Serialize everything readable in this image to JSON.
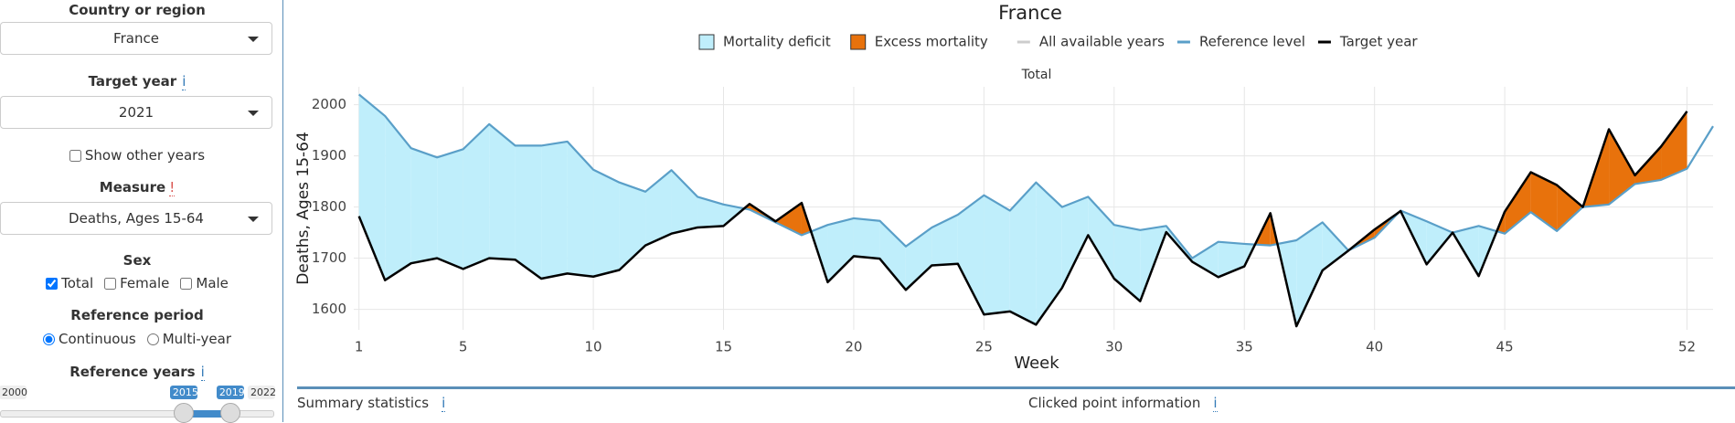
{
  "sidebar": {
    "country": {
      "label": "Country or region",
      "value": "France"
    },
    "target_year": {
      "label": "Target year",
      "info": "i",
      "value": "2021"
    },
    "show_other_years": {
      "label": "Show other years",
      "checked": false
    },
    "measure": {
      "label": "Measure",
      "info": "!",
      "value": "Deaths, Ages 15-64"
    },
    "sex": {
      "label": "Sex",
      "options": [
        {
          "label": "Total",
          "checked": true
        },
        {
          "label": "Female",
          "checked": false
        },
        {
          "label": "Male",
          "checked": false
        }
      ]
    },
    "reference_period": {
      "label": "Reference period",
      "options": [
        {
          "label": "Continuous",
          "checked": true
        },
        {
          "label": "Multi-year",
          "checked": false
        }
      ]
    },
    "reference_years": {
      "label": "Reference years",
      "info": "i",
      "min": 2000,
      "max": 2022,
      "from": 2015,
      "to": 2019
    }
  },
  "chart_data": {
    "type": "area",
    "title": "France",
    "subtitle": "Total",
    "x_label": "Week",
    "y_label": "Deaths, Ages 15-64",
    "x": [
      1,
      2,
      3,
      4,
      5,
      6,
      7,
      8,
      9,
      10,
      11,
      12,
      13,
      14,
      15,
      16,
      17,
      18,
      19,
      20,
      21,
      22,
      23,
      24,
      25,
      26,
      27,
      28,
      29,
      30,
      31,
      32,
      33,
      34,
      35,
      36,
      37,
      38,
      39,
      40,
      41,
      42,
      43,
      44,
      45,
      46,
      47,
      48,
      49,
      50,
      51,
      52,
      53
    ],
    "areas": [
      {
        "name": "Mortality deficit",
        "color": "#bfeefb"
      },
      {
        "name": "Excess mortality",
        "color": "#e8720c"
      }
    ],
    "background_series": {
      "name": "All available years",
      "color": "#cccccc"
    },
    "series": [
      {
        "name": "Reference level",
        "color": "#5a9fc8",
        "values": [
          2020,
          1978,
          1915,
          1897,
          1913,
          1962,
          1920,
          1920,
          1928,
          1873,
          1848,
          1830,
          1872,
          1820,
          1805,
          1795,
          1770,
          1745,
          1765,
          1778,
          1773,
          1723,
          1760,
          1785,
          1823,
          1793,
          1848,
          1800,
          1820,
          1765,
          1755,
          1763,
          1700,
          1732,
          1728,
          1725,
          1735,
          1770,
          1715,
          1740,
          1793,
          1772,
          1750,
          1763,
          1748,
          1790,
          1753,
          1800,
          1805,
          1845,
          1853,
          1875,
          1958
        ]
      },
      {
        "name": "Target year",
        "color": "#000000",
        "values": [
          1782,
          1657,
          1690,
          1700,
          1679,
          1700,
          1697,
          1660,
          1670,
          1664,
          1677,
          1725,
          1748,
          1760,
          1763,
          1806,
          1772,
          1808,
          1653,
          1704,
          1699,
          1638,
          1686,
          1689,
          1590,
          1596,
          1570,
          1642,
          1745,
          1660,
          1616,
          1751,
          1693,
          1663,
          1684,
          1788,
          1567,
          1676,
          1715,
          1756,
          1792,
          1688,
          1750,
          1665,
          1791,
          1868,
          1843,
          1800,
          1952,
          1862,
          1918,
          1987,
          null
        ]
      }
    ],
    "xlim": [
      0.8,
      53
    ],
    "xticks": [
      1,
      5,
      10,
      15,
      20,
      25,
      30,
      35,
      40,
      45,
      52
    ],
    "ylim": [
      1560,
      2035
    ],
    "yticks": [
      1600,
      1700,
      1800,
      1900,
      2000
    ],
    "grid": true
  },
  "footer": {
    "summary": "Summary statistics",
    "summary_info": "i",
    "clicked": "Clicked point information",
    "clicked_info": "i"
  }
}
